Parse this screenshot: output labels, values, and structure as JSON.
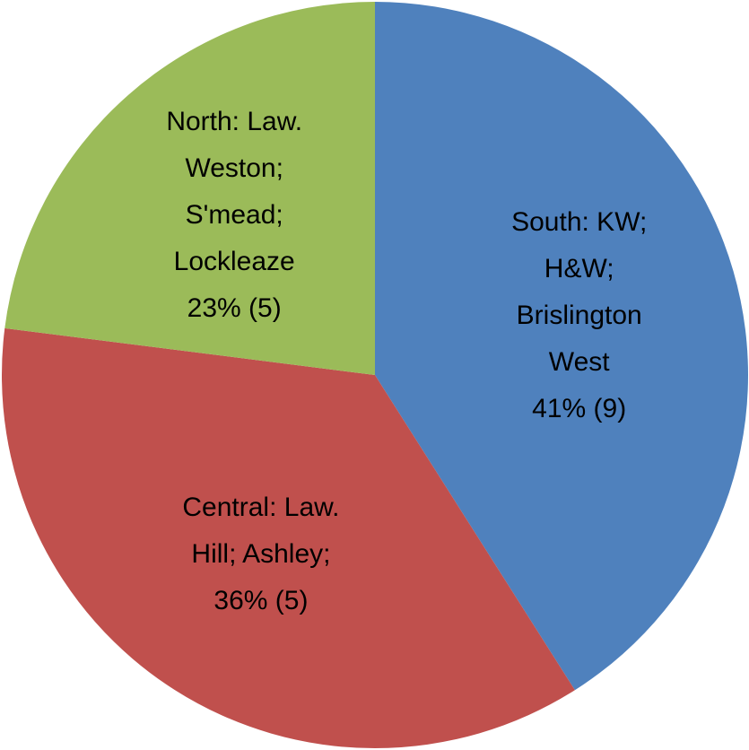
{
  "chart_data": {
    "type": "pie",
    "categories": [
      "South: KW; H&W; Brislington West",
      "Central: Law. Hill; Ashley;",
      "North: Law. Weston; S'mead; Lockleaze"
    ],
    "values": [
      41,
      36,
      23
    ],
    "value_labels": [
      "41% (9)",
      "36% (5)",
      "23% (5)"
    ],
    "colors": [
      "#4f81bd",
      "#c0504d",
      "#9bbb59"
    ]
  }
}
